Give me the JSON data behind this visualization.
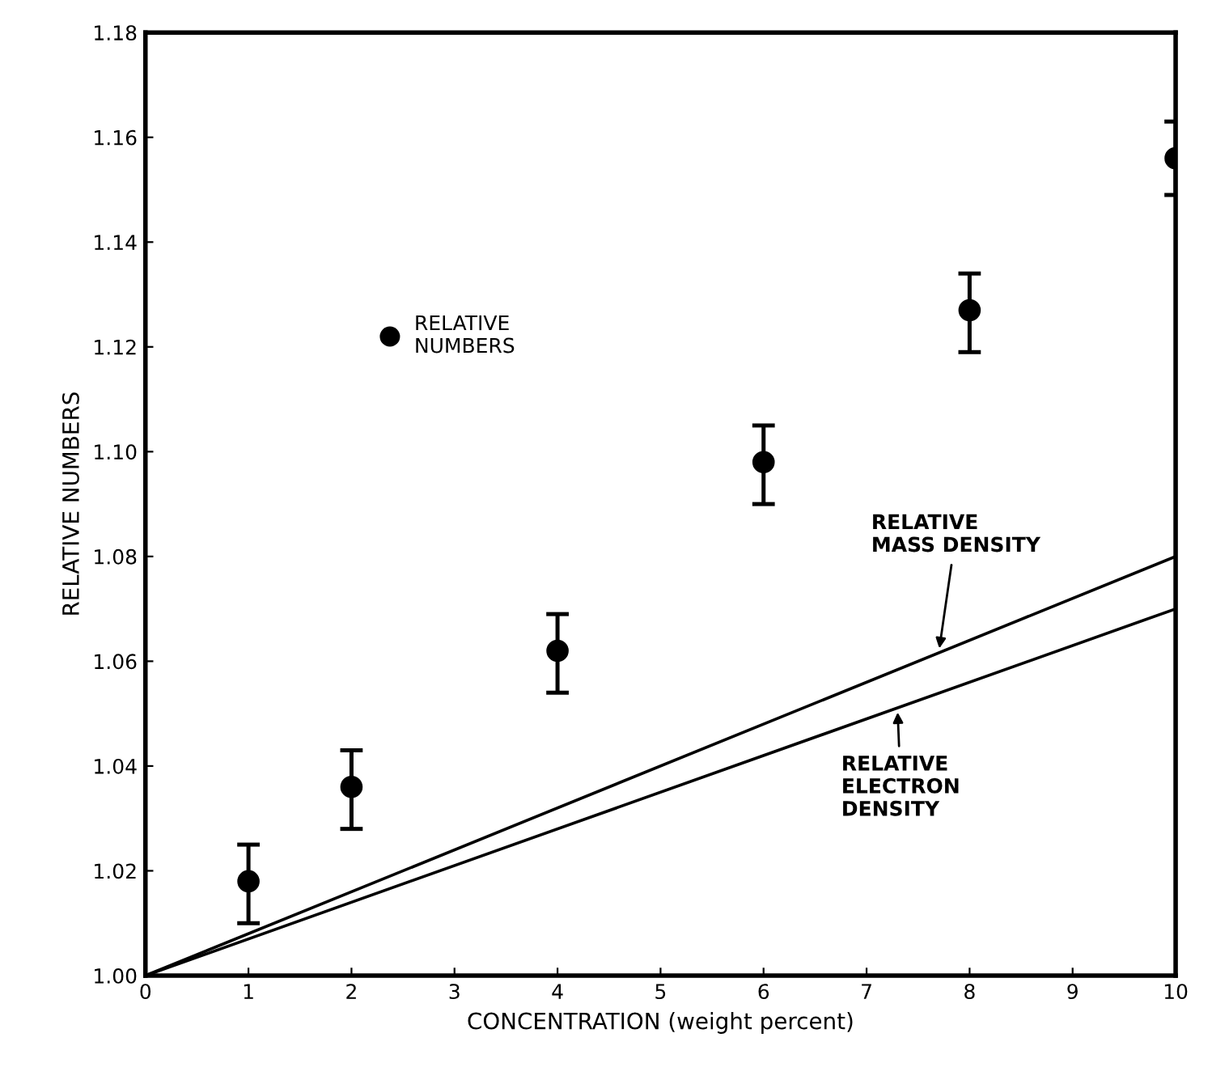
{
  "chart_data": {
    "type": "scatter",
    "xlabel": "CONCENTRATION (weight percent)",
    "ylabel": "RELATIVE NUMBERS",
    "xlim": [
      0,
      10
    ],
    "ylim": [
      1.0,
      1.18
    ],
    "xticks": [
      0,
      1,
      2,
      3,
      4,
      5,
      6,
      7,
      8,
      9,
      10
    ],
    "yticks": [
      {
        "value": 1.0,
        "label": "1.00"
      },
      {
        "value": 1.02,
        "label": "1.02"
      },
      {
        "value": 1.04,
        "label": "1.04"
      },
      {
        "value": 1.06,
        "label": "1.06"
      },
      {
        "value": 1.08,
        "label": "1.08"
      },
      {
        "value": 1.1,
        "label": "1.10"
      },
      {
        "value": 1.12,
        "label": "1.12"
      },
      {
        "value": 1.14,
        "label": "1.14"
      },
      {
        "value": 1.16,
        "label": "1.16"
      },
      {
        "value": 1.18,
        "label": "1.18"
      }
    ],
    "grid": false,
    "legend": "top left",
    "series": [
      {
        "name": "RELATIVE\nNUMBERS",
        "marker": "circle",
        "color": "#000000",
        "x": [
          1,
          2,
          4,
          6,
          8,
          10
        ],
        "values": [
          1.018,
          1.036,
          1.062,
          1.098,
          1.127,
          1.156
        ],
        "errors": [
          [
            1.01,
            1.025
          ],
          [
            1.028,
            1.043
          ],
          [
            1.054,
            1.069
          ],
          [
            1.09,
            1.105
          ],
          [
            1.119,
            1.134
          ],
          [
            1.149,
            1.163
          ]
        ]
      },
      {
        "name": "RELATIVE\nMASS DENSITY",
        "type": "line",
        "marker": "none",
        "color": "#000000",
        "x": [
          0,
          10
        ],
        "values": [
          1.0,
          1.08
        ]
      },
      {
        "name": "RELATIVE\nELECTRON\nDENSITY",
        "type": "line",
        "marker": "none",
        "color": "#000000",
        "x": [
          0,
          10
        ],
        "values": [
          1.0,
          1.07
        ]
      }
    ]
  }
}
